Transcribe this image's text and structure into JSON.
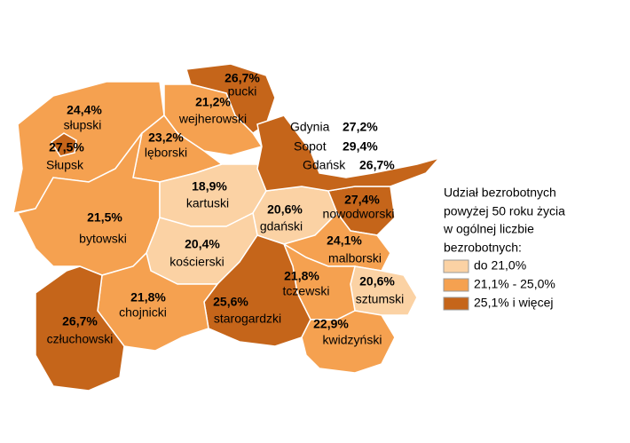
{
  "regions": [
    {
      "name": "słupski",
      "value": "24,4%",
      "color": "#f5a150"
    },
    {
      "name": "Słupsk",
      "value": "27,5%",
      "color": "#c5651a"
    },
    {
      "name": "pucki",
      "value": "26,7%",
      "color": "#c5651a"
    },
    {
      "name": "wejherowski",
      "value": "21,2%",
      "color": "#f5a150"
    },
    {
      "name": "lęborski",
      "value": "23,2%",
      "color": "#f5a150"
    },
    {
      "name": "bytowski",
      "value": "21,5%",
      "color": "#f5a150"
    },
    {
      "name": "kartuski",
      "value": "18,9%",
      "color": "#fbd2a4"
    },
    {
      "name": "gdański",
      "value": "20,6%",
      "color": "#fbd2a4"
    },
    {
      "name": "nowodworski",
      "value": "27,4%",
      "color": "#c5651a"
    },
    {
      "name": "kościerski",
      "value": "20,4%",
      "color": "#fbd2a4"
    },
    {
      "name": "malborski",
      "value": "24,1%",
      "color": "#f5a150"
    },
    {
      "name": "sztumski",
      "value": "20,6%",
      "color": "#fbd2a4"
    },
    {
      "name": "tczewski",
      "value": "21,8%",
      "color": "#f5a150"
    },
    {
      "name": "starogardzki",
      "value": "25,6%",
      "color": "#c5651a"
    },
    {
      "name": "kwidzyński",
      "value": "22,9%",
      "color": "#f5a150"
    },
    {
      "name": "chojnicki",
      "value": "21,8%",
      "color": "#f5a150"
    },
    {
      "name": "człuchowski",
      "value": "26,7%",
      "color": "#c5651a"
    }
  ],
  "cities": [
    {
      "name": "Gdynia",
      "value": "27,2%"
    },
    {
      "name": "Sopot",
      "value": "29,4%"
    },
    {
      "name": "Gdańsk",
      "value": "26,7%"
    }
  ],
  "cities_color": "#c5651a",
  "legend": {
    "title_lines": [
      "Udział bezrobotnych",
      "powyżej 50 roku życia",
      "w ogólnej liczbie",
      "bezrobotnych:"
    ],
    "items": [
      {
        "label": "do 21,0%",
        "color": "#fbd2a4"
      },
      {
        "label": "21,1% - 25,0%",
        "color": "#f5a150"
      },
      {
        "label": "25,1% i więcej",
        "color": "#c5651a"
      }
    ]
  }
}
